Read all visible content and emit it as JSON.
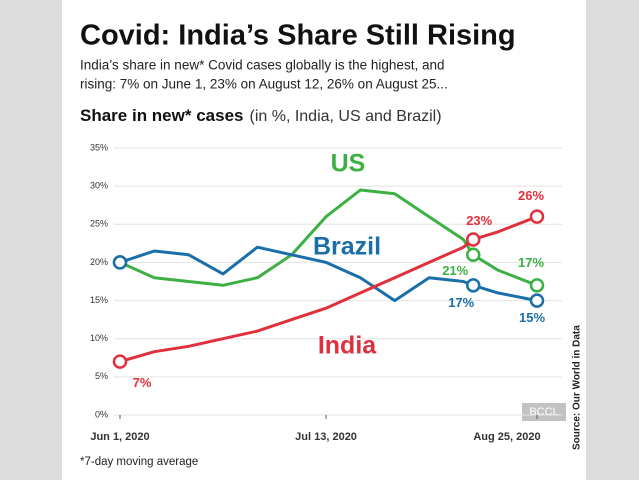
{
  "chart_data": {
    "type": "line",
    "title": "Covid: India’s Share Still Rising",
    "subtitle": [
      "India’s share in new* Covid cases globally is the highest, and",
      "rising: 7% on June 1, 23% on August 12, 26% on August 25..."
    ],
    "chart_title": "Share in new* cases",
    "chart_subtitle": "(in %, India, US and Brazil)",
    "footnote": "*7-day moving average",
    "source": "Source: Our World in Data",
    "watermark": "BCCL",
    "x": [
      "2020-06-01",
      "2020-06-08",
      "2020-06-15",
      "2020-06-22",
      "2020-06-29",
      "2020-07-06",
      "2020-07-13",
      "2020-07-20",
      "2020-07-27",
      "2020-08-03",
      "2020-08-10",
      "2020-08-12",
      "2020-08-17",
      "2020-08-25"
    ],
    "xlim": [
      "2020-06-01",
      "2020-08-25"
    ],
    "xticks": [
      {
        "value": "2020-06-01",
        "label": "Jun 1, 2020"
      },
      {
        "value": "2020-07-13",
        "label": "Jul 13, 2020"
      },
      {
        "value": "2020-08-25",
        "label": "Aug 25, 2020"
      }
    ],
    "ylim": [
      0,
      35
    ],
    "yticks": [
      {
        "value": 0,
        "label": "0%"
      },
      {
        "value": 5,
        "label": "5%"
      },
      {
        "value": 10,
        "label": "10%"
      },
      {
        "value": 15,
        "label": "15%"
      },
      {
        "value": 20,
        "label": "20%"
      },
      {
        "value": 25,
        "label": "25%"
      },
      {
        "value": 30,
        "label": "30%"
      },
      {
        "value": 35,
        "label": "35%"
      }
    ],
    "grid": true,
    "series": [
      {
        "name": "US",
        "color": "#3cb043",
        "values": [
          20,
          18,
          17.5,
          17,
          18,
          21,
          26,
          29.5,
          29,
          26,
          23,
          21,
          19,
          17
        ],
        "value_labels": [
          null,
          null,
          null,
          null,
          null,
          null,
          null,
          null,
          null,
          null,
          null,
          "21%",
          null,
          "17%"
        ]
      },
      {
        "name": "Brazil",
        "color": "#1a6fa8",
        "values": [
          20,
          21.5,
          21,
          18.5,
          22,
          21,
          20,
          18,
          15,
          18,
          17.5,
          17,
          16,
          15
        ],
        "value_labels": [
          null,
          null,
          null,
          null,
          null,
          null,
          null,
          null,
          null,
          null,
          null,
          "17%",
          null,
          "15%"
        ]
      },
      {
        "name": "India",
        "color": "#e0303d",
        "values": [
          7,
          8.3,
          9,
          10,
          11,
          12.5,
          14,
          16,
          18,
          20,
          22,
          23,
          24,
          26
        ],
        "value_labels": [
          "7%",
          null,
          null,
          null,
          null,
          null,
          null,
          null,
          null,
          null,
          null,
          "23%",
          null,
          "26%"
        ]
      }
    ]
  }
}
